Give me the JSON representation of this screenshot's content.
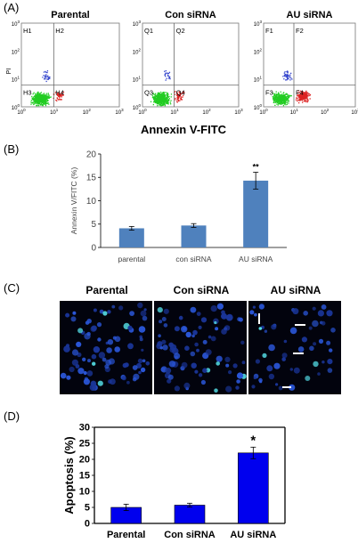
{
  "panels": {
    "a": {
      "label": "(A)",
      "plots": [
        {
          "title": "Parental",
          "quadrants": [
            "H1",
            "H2",
            "H3",
            "H4"
          ]
        },
        {
          "title": "Con siRNA",
          "quadrants": [
            "Q1",
            "Q2",
            "Q3",
            "Q4"
          ]
        },
        {
          "title": "AU siRNA",
          "quadrants": [
            "F1",
            "F2",
            "F3",
            "F4"
          ]
        }
      ],
      "y_axis_label": "PI",
      "x_axis_label": "Annexin V-FITC",
      "tick_base": "10",
      "tick_exps": [
        "0",
        "1",
        "2",
        "3"
      ],
      "colors": {
        "viable": "#22cc22",
        "early_apoptotic": "#dd2222",
        "dead": "#3344cc"
      }
    },
    "b": {
      "label": "(B)",
      "significance": "**",
      "color": "#4f81bd"
    },
    "c": {
      "label": "(C)",
      "titles": [
        "Parental",
        "Con siRNA",
        "AU siRNA"
      ]
    },
    "d": {
      "label": "(D)",
      "significance": "*",
      "color": "#0000ee"
    }
  },
  "chart_data": [
    {
      "type": "bar",
      "panel": "B",
      "categories": [
        "parental",
        "con siRNA",
        "AU siRNA"
      ],
      "values": [
        4.1,
        4.7,
        14.3
      ],
      "errors": [
        0.4,
        0.4,
        1.8
      ],
      "title": "",
      "xlabel": "",
      "ylabel": "Annexin V/FITC (%)",
      "ylim": [
        0,
        20
      ],
      "yticks": [
        "0",
        "5",
        "10",
        "15",
        "20"
      ],
      "grid": false,
      "legend": "none"
    },
    {
      "type": "bar",
      "panel": "D",
      "categories": [
        "Parental",
        "Con siRNA",
        "AU siRNA"
      ],
      "values": [
        5.0,
        5.7,
        22.0
      ],
      "errors": [
        1.0,
        0.6,
        1.8
      ],
      "title": "",
      "xlabel": "",
      "ylabel": "Apoptosis (%)",
      "ylim": [
        0,
        30
      ],
      "yticks": [
        "0",
        "5",
        "10",
        "15",
        "20",
        "25",
        "30"
      ],
      "grid": false,
      "legend": "none"
    }
  ]
}
